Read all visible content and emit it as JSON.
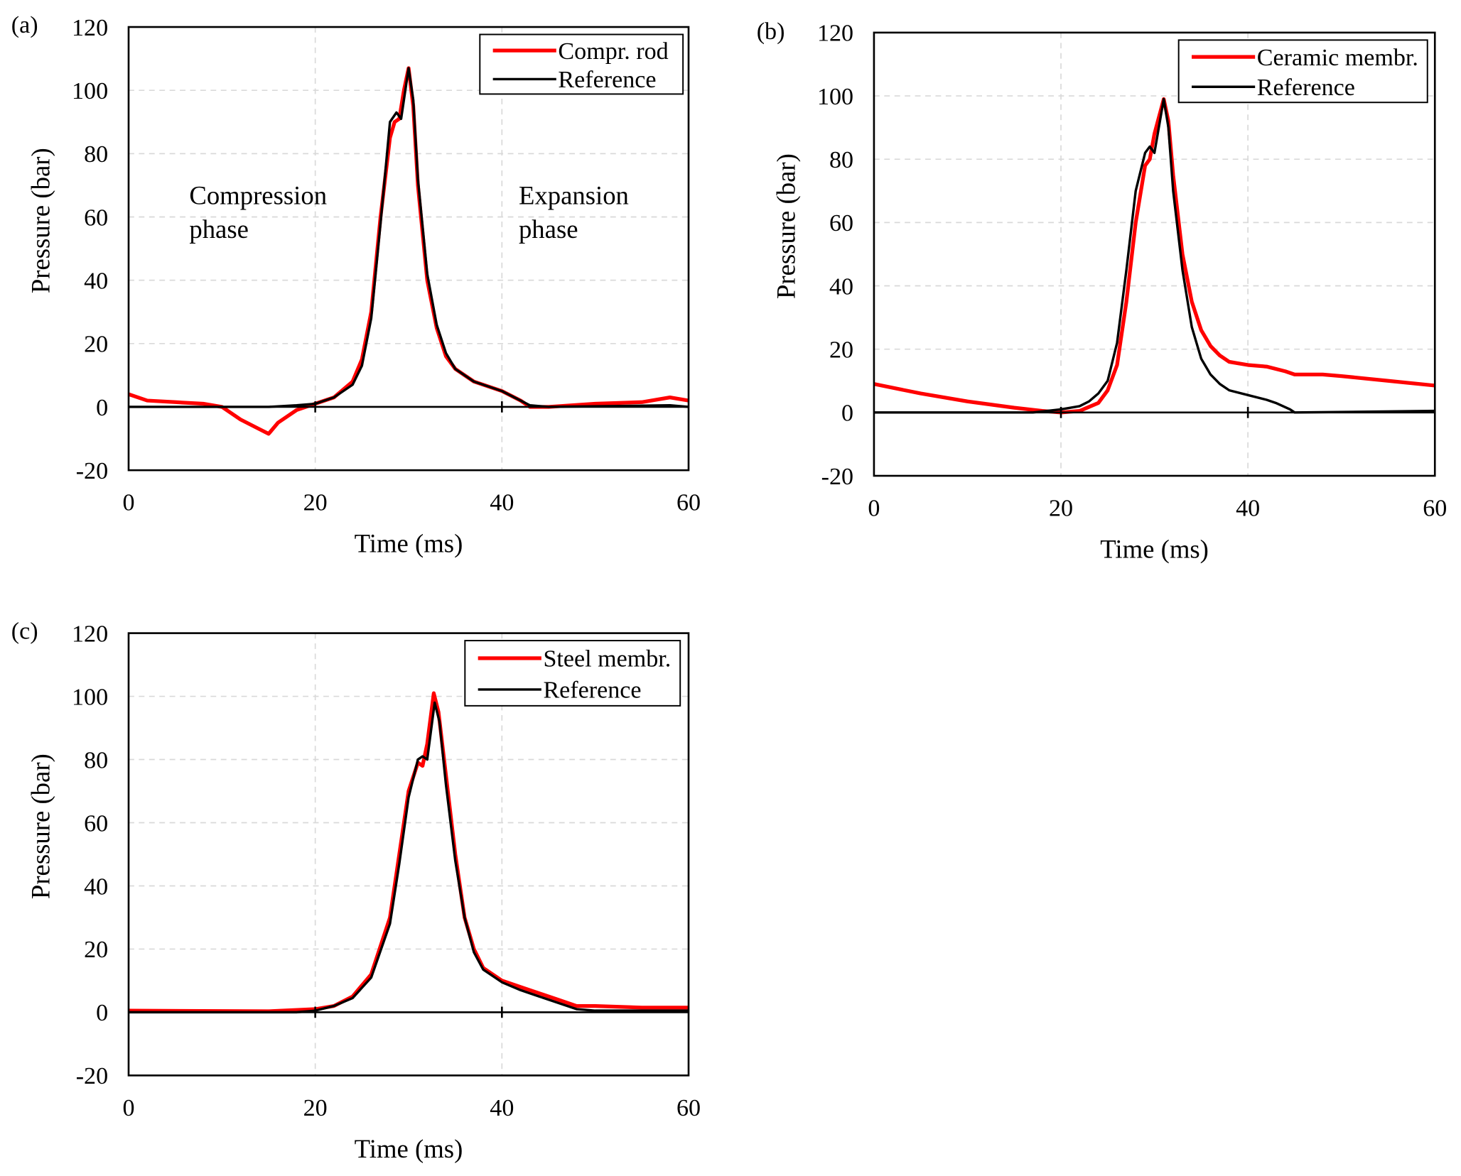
{
  "chart_data": [
    {
      "panel_label": "(a)",
      "type": "line",
      "xlabel": "Time (ms)",
      "ylabel": "Pressure (bar)",
      "xlim": [
        0,
        60
      ],
      "ylim": [
        -20,
        120
      ],
      "xticks": [
        0,
        20,
        40,
        60
      ],
      "yticks": [
        -20,
        0,
        20,
        40,
        60,
        80,
        100,
        120
      ],
      "grid": true,
      "legend_position": "top-right",
      "annotations": [
        {
          "lines": [
            "Compression",
            "phase"
          ],
          "x": 6.5,
          "y": 64
        },
        {
          "lines": [
            "Expansion",
            "phase"
          ],
          "x": 41.8,
          "y": 64
        }
      ],
      "series": [
        {
          "name": "Compr. rod",
          "color": "#ff0000",
          "x": [
            0,
            2,
            5,
            8,
            10,
            12,
            14,
            15,
            16,
            18,
            20,
            22,
            24,
            25,
            26,
            27,
            28,
            28.5,
            29,
            29.5,
            30,
            30.5,
            31,
            32,
            33,
            34,
            35,
            37,
            40,
            42,
            43,
            45,
            50,
            55,
            58,
            60
          ],
          "y": [
            4,
            2,
            1.5,
            1,
            0,
            -4,
            -7,
            -8.5,
            -5,
            -1,
            1,
            3,
            8,
            15,
            30,
            60,
            85,
            90,
            91,
            100,
            107,
            95,
            70,
            40,
            25,
            16,
            12,
            8,
            5,
            2,
            0,
            0,
            1,
            1.5,
            3,
            2
          ]
        },
        {
          "name": "Reference",
          "color": "#000000",
          "x": [
            0,
            10,
            15,
            18,
            20,
            22,
            24,
            25,
            26,
            27,
            28,
            28.7,
            29.2,
            30,
            30.5,
            31,
            32,
            33,
            34,
            35,
            37,
            40,
            42,
            43,
            45,
            58,
            60
          ],
          "y": [
            0,
            0,
            0,
            0.5,
            1,
            3,
            7,
            13,
            28,
            58,
            90,
            93,
            91,
            107,
            97,
            72,
            42,
            26,
            17,
            12,
            8,
            5,
            2,
            0.5,
            0,
            0.5,
            0
          ]
        }
      ]
    },
    {
      "panel_label": "(b)",
      "type": "line",
      "xlabel": "Time (ms)",
      "ylabel": "Pressure (bar)",
      "xlim": [
        0,
        60
      ],
      "ylim": [
        -20,
        120
      ],
      "xticks": [
        0,
        20,
        40,
        60
      ],
      "yticks": [
        -20,
        0,
        20,
        40,
        60,
        80,
        100,
        120
      ],
      "grid": true,
      "legend_position": "top-right",
      "series": [
        {
          "name": "Ceramic membr.",
          "color": "#ff0000",
          "x": [
            0,
            5,
            10,
            15,
            18,
            20,
            22,
            24,
            25,
            26,
            27,
            28,
            29,
            29.5,
            30,
            31,
            31.5,
            32,
            33,
            34,
            35,
            36,
            37,
            38,
            40,
            42,
            44,
            45,
            48,
            50,
            55,
            60
          ],
          "y": [
            9,
            6,
            3.5,
            1.5,
            0.5,
            0,
            0.5,
            3,
            7,
            15,
            35,
            60,
            78,
            80,
            88,
            99,
            92,
            75,
            50,
            35,
            26,
            21,
            18,
            16,
            15,
            14.5,
            13,
            12,
            12,
            11.5,
            10,
            8.5
          ]
        },
        {
          "name": "Reference",
          "color": "#000000",
          "x": [
            0,
            17,
            20,
            22,
            23,
            24,
            25,
            26,
            27,
            28,
            29,
            29.5,
            30,
            31,
            31.5,
            32,
            33,
            34,
            35,
            36,
            37,
            38,
            40,
            42,
            43,
            44.5,
            45,
            60
          ],
          "y": [
            0,
            0,
            1,
            2,
            3.5,
            6,
            10,
            22,
            45,
            70,
            82,
            84,
            82,
            99,
            90,
            70,
            45,
            27,
            17,
            12,
            9,
            7,
            5.5,
            4,
            3,
            1,
            0,
            0.5
          ]
        }
      ]
    },
    {
      "panel_label": "(c)",
      "type": "line",
      "xlabel": "Time (ms)",
      "ylabel": "Pressure (bar)",
      "xlim": [
        0,
        60
      ],
      "ylim": [
        -20,
        120
      ],
      "xticks": [
        0,
        20,
        40,
        60
      ],
      "yticks": [
        -20,
        0,
        20,
        40,
        60,
        80,
        100,
        120
      ],
      "grid": true,
      "legend_position": "top-right",
      "series": [
        {
          "name": "Steel membr.",
          "color": "#ff0000",
          "x": [
            0,
            15,
            20,
            22,
            24,
            26,
            28,
            29,
            30,
            31,
            31.5,
            32,
            32.7,
            33.2,
            34,
            35,
            36,
            37,
            38,
            40,
            42,
            44,
            46,
            48,
            50,
            55,
            60
          ],
          "y": [
            0.5,
            0.3,
            1,
            2,
            5,
            12,
            30,
            50,
            70,
            79,
            78,
            85,
            101,
            95,
            75,
            50,
            30,
            20,
            14,
            10,
            8,
            6,
            4,
            2,
            2,
            1.5,
            1.5
          ]
        },
        {
          "name": "Reference",
          "color": "#000000",
          "x": [
            0,
            18,
            20,
            22,
            24,
            26,
            28,
            29,
            30,
            31,
            31.5,
            32,
            32.8,
            33.3,
            34,
            35,
            36,
            37,
            38,
            40,
            42,
            44,
            46,
            48,
            50,
            60
          ],
          "y": [
            0,
            0,
            0.5,
            2,
            4.5,
            11,
            28,
            47,
            68,
            80,
            81,
            80,
            98,
            92,
            72,
            48,
            30,
            19,
            13.5,
            9.5,
            7,
            5,
            3,
            1,
            0.5,
            0.5
          ]
        }
      ]
    }
  ]
}
